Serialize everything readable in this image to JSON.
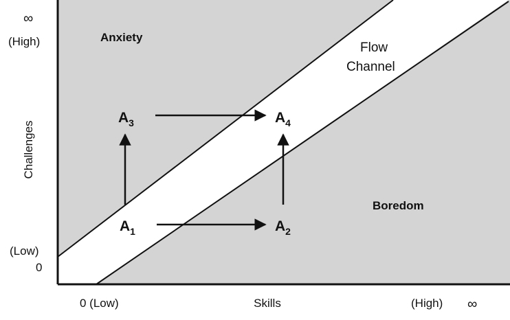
{
  "diagram": {
    "regions": {
      "anxiety": "Anxiety",
      "flow_line1": "Flow",
      "flow_line2": "Channel",
      "boredom": "Boredom"
    },
    "points": [
      {
        "id": "A1",
        "letter": "A",
        "sub": "1"
      },
      {
        "id": "A2",
        "letter": "A",
        "sub": "2"
      },
      {
        "id": "A3",
        "letter": "A",
        "sub": "3"
      },
      {
        "id": "A4",
        "letter": "A",
        "sub": "4"
      }
    ],
    "y_axis": {
      "label": "Challenges",
      "top_symbol": "∞",
      "top_label": "(High)",
      "bottom_label": "(Low)",
      "bottom_value": "0"
    },
    "x_axis": {
      "label": "Skills",
      "left_label": "0 (Low)",
      "right_label": "(High)",
      "right_symbol": "∞"
    },
    "colors": {
      "zone_fill": "#d4d4d4",
      "channel_fill": "#ffffff",
      "line": "#111111"
    }
  }
}
